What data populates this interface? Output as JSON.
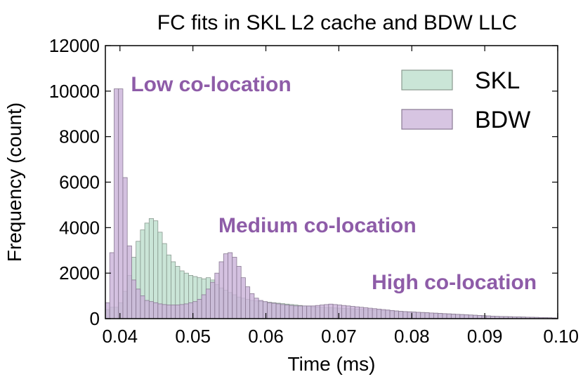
{
  "chart_data": {
    "type": "bar",
    "title": "FC fits in SKL L2 cache and BDW LLC",
    "xlabel": "Time (ms)",
    "ylabel": "Frequency (count)",
    "xlim": [
      0.038,
      0.1
    ],
    "ylim": [
      0,
      12000
    ],
    "bin_start": 0.038,
    "bin_width": 0.0006,
    "x_ticks": [
      0.04,
      0.05,
      0.06,
      0.07,
      0.08,
      0.09,
      0.1
    ],
    "x_tick_labels": [
      "0.04",
      "0.05",
      "0.06",
      "0.07",
      "0.08",
      "0.09",
      "0.10"
    ],
    "y_ticks": [
      0,
      2000,
      4000,
      6000,
      8000,
      10000,
      12000
    ],
    "y_tick_labels": [
      "0",
      "2000",
      "4000",
      "6000",
      "8000",
      "10000",
      "12000"
    ],
    "legend_position": "top-right",
    "series": [
      {
        "name": "SKL",
        "fill": "#b8dcca",
        "stroke": "#8a9a90",
        "values": [
          400,
          500,
          500,
          700,
          1200,
          1900,
          2700,
          3400,
          3900,
          4200,
          4400,
          4300,
          3800,
          3300,
          2800,
          2500,
          2300,
          2100,
          2000,
          1900,
          1850,
          1800,
          1750,
          1800,
          1700,
          1500,
          1350,
          1250,
          1150,
          1050,
          950,
          900,
          850,
          800,
          780,
          760,
          740,
          720,
          700,
          680,
          660,
          640,
          620,
          600,
          580,
          560,
          540,
          520,
          510,
          500,
          490,
          480,
          470,
          460,
          450,
          440,
          430,
          420,
          410,
          400,
          390,
          380,
          370,
          360,
          350,
          340,
          330,
          320,
          310,
          300,
          290,
          280,
          270,
          260,
          250,
          240,
          230,
          220,
          210,
          200,
          190,
          180,
          170,
          160,
          150,
          140,
          130,
          120,
          110,
          100,
          95,
          90,
          85,
          80,
          75,
          70,
          65,
          60,
          55,
          50,
          45,
          40,
          35
        ]
      },
      {
        "name": "BDW",
        "fill": "#c9b1d8",
        "stroke": "#8a7a94",
        "values": [
          700,
          2900,
          10100,
          10100,
          6200,
          3200,
          1700,
          1300,
          1000,
          800,
          750,
          700,
          650,
          620,
          600,
          600,
          600,
          620,
          650,
          700,
          750,
          850,
          1050,
          1300,
          1600,
          2000,
          2500,
          2850,
          2900,
          2700,
          2300,
          1800,
          1400,
          1100,
          900,
          800,
          750,
          700,
          680,
          650,
          620,
          600,
          580,
          560,
          560,
          560,
          560,
          560,
          580,
          600,
          620,
          640,
          620,
          600,
          580,
          560,
          540,
          520,
          500,
          480,
          460,
          440,
          420,
          400,
          380,
          360,
          340,
          320,
          310,
          300,
          290,
          280,
          270,
          260,
          250,
          240,
          230,
          220,
          210,
          200,
          190,
          180,
          170,
          160,
          150,
          140,
          130,
          120,
          110,
          100,
          95,
          90,
          85,
          80,
          75,
          70,
          65,
          60,
          55,
          50,
          45,
          40,
          35
        ]
      }
    ],
    "annotations": [
      {
        "text": "Low co-location",
        "x": 0.0415,
        "y": 10000,
        "color": "#8e5ca8"
      },
      {
        "text": "Medium co-location",
        "x": 0.0535,
        "y": 3800,
        "color": "#8e5ca8"
      },
      {
        "text": "High co-location",
        "x": 0.0745,
        "y": 1300,
        "color": "#8e5ca8"
      }
    ]
  }
}
